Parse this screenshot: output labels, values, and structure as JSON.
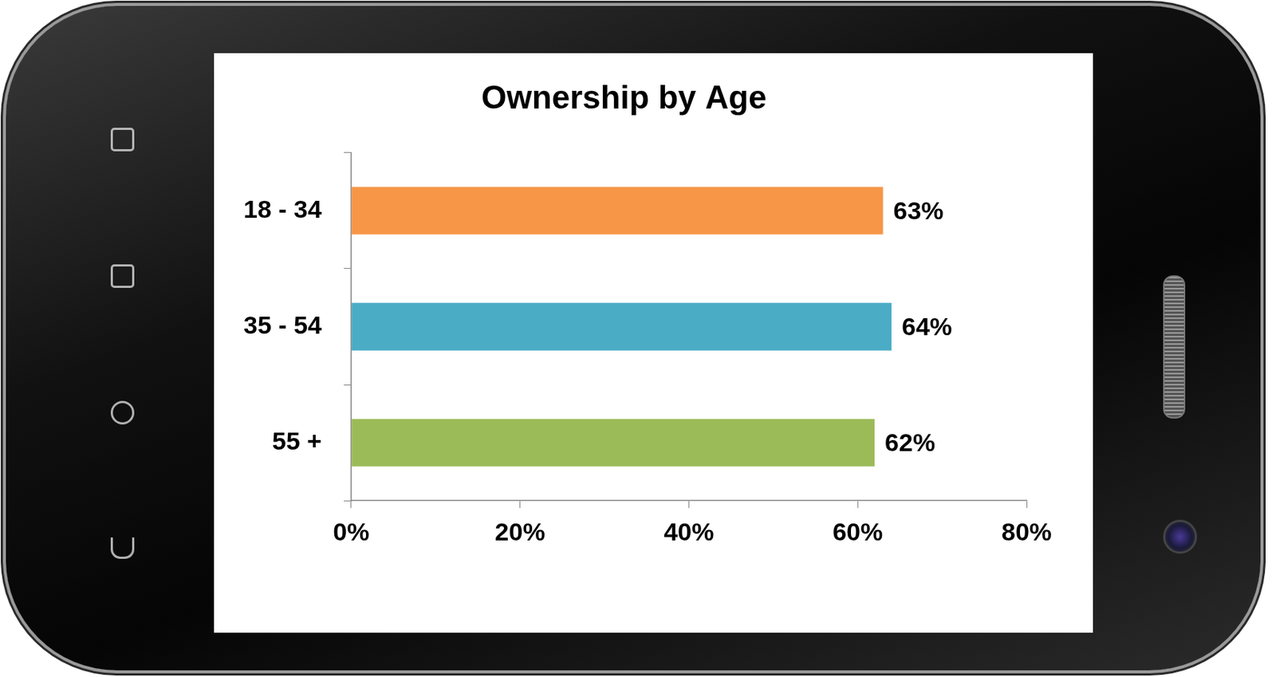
{
  "chart_data": {
    "type": "bar",
    "orientation": "horizontal",
    "title": "Ownership by Age",
    "categories": [
      "18 - 34",
      "35 - 54",
      "55 +"
    ],
    "values": [
      63,
      64,
      62
    ],
    "value_labels": [
      "63%",
      "64%",
      "62%"
    ],
    "colors": [
      "#f79646",
      "#4bacc6",
      "#9bbb59"
    ],
    "xlim": [
      0,
      80
    ],
    "xticks": [
      {
        "value": 0,
        "label": "0%"
      },
      {
        "value": 20,
        "label": "20%"
      },
      {
        "value": 40,
        "label": "40%"
      },
      {
        "value": 60,
        "label": "60%"
      },
      {
        "value": 80,
        "label": "80%"
      }
    ],
    "grid": false,
    "data_labels": true
  }
}
